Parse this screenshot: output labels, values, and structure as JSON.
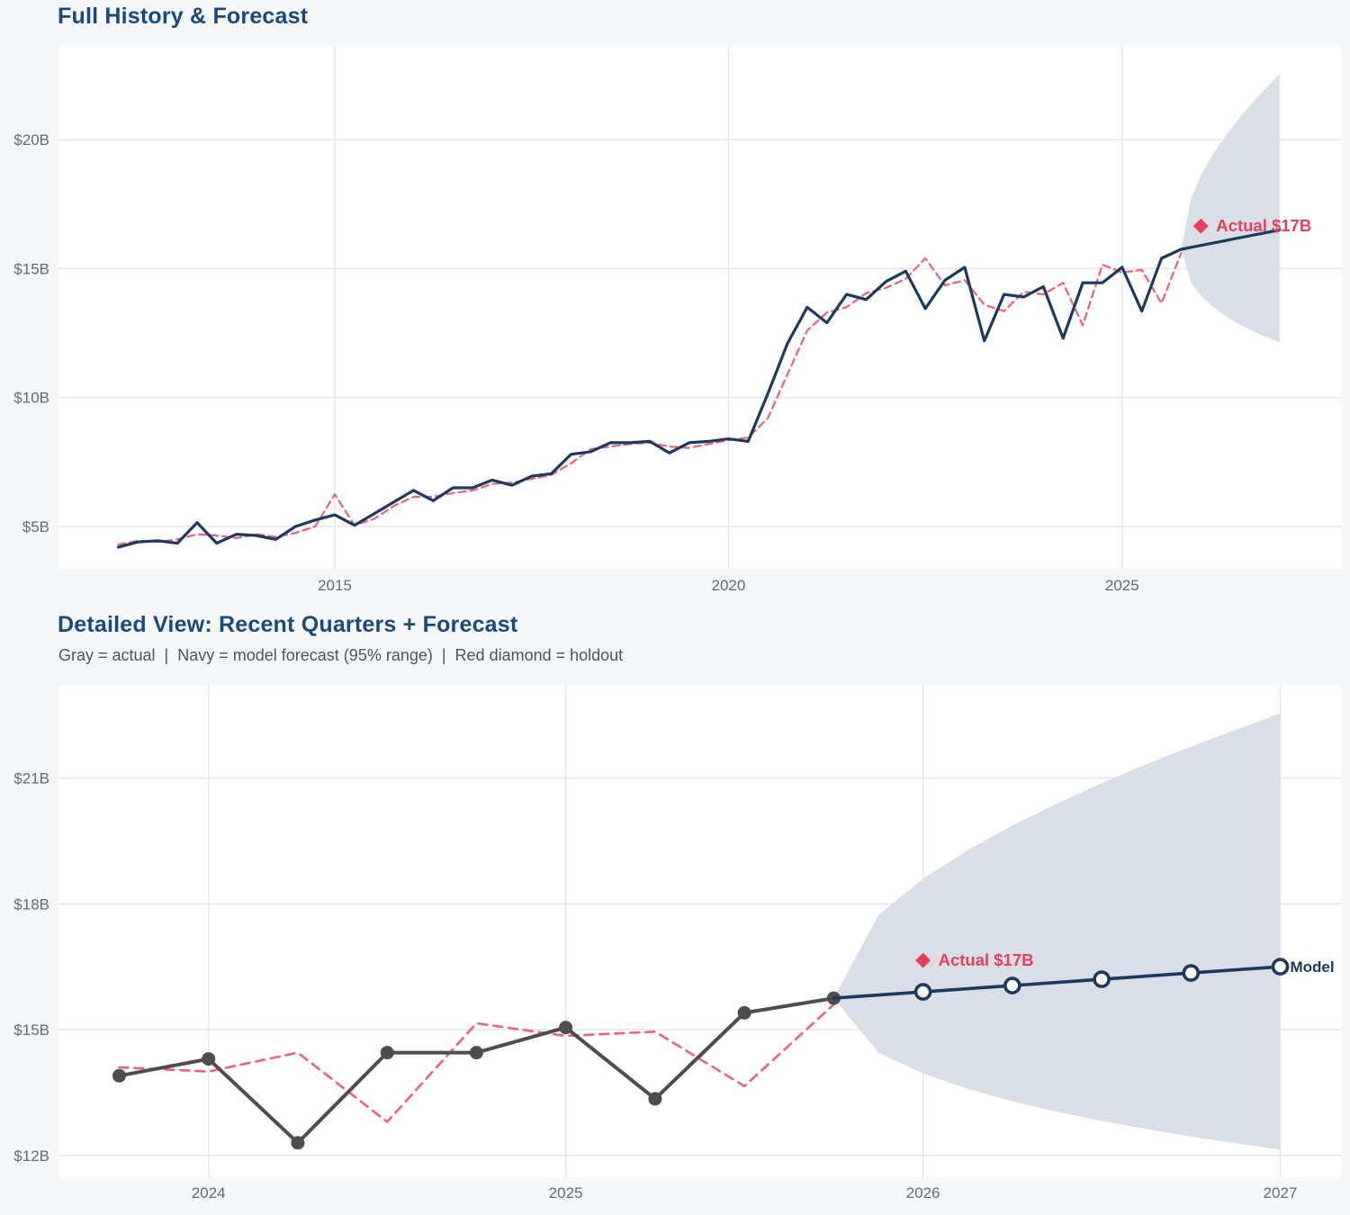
{
  "page": {
    "background": "#f5f7f9"
  },
  "colors": {
    "page_bg": "#f5f7f9",
    "plot_bg": "#ffffff",
    "grid": "#e3e5e8",
    "tick": "#66696e",
    "title": "#1a4a7c",
    "subtitle": "#4b555e",
    "navy": "#1b3a5f",
    "pink": "#ef607c",
    "red": "#e93d5f",
    "gray": "#4d4d4d",
    "fan": "#d9dee7"
  },
  "chart_data": [
    {
      "type": "line",
      "title": "Full History & Forecast",
      "xlabel": "",
      "ylabel": "",
      "grid": true,
      "x_range": [
        2011.49,
        2027.78
      ],
      "y_range": [
        3.36,
        23.6
      ],
      "x_ticks": [
        {
          "v": 2015,
          "label": "2015"
        },
        {
          "v": 2020,
          "label": "2020"
        },
        {
          "v": 2025,
          "label": "2025"
        }
      ],
      "y_ticks": [
        {
          "v": 5,
          "label": "$5B"
        },
        {
          "v": 10,
          "label": "$10B"
        },
        {
          "v": 15,
          "label": "$15B"
        },
        {
          "v": 20,
          "label": "$20B"
        }
      ],
      "band": {
        "name": "forecast-95-range",
        "color": "fan",
        "points": [
          {
            "t": 2025.75,
            "lo": 15.75,
            "hi": 15.75
          },
          {
            "t": 2025.875,
            "lo": 14.45,
            "hi": 17.73
          },
          {
            "t": 2026,
            "lo": 13.95,
            "hi": 18.6
          },
          {
            "t": 2026.125,
            "lo": 13.59,
            "hi": 19.28
          },
          {
            "t": 2026.25,
            "lo": 13.29,
            "hi": 19.87
          },
          {
            "t": 2026.375,
            "lo": 13.04,
            "hi": 20.39
          },
          {
            "t": 2026.5,
            "lo": 12.82,
            "hi": 20.88
          },
          {
            "t": 2026.625,
            "lo": 12.63,
            "hi": 21.33
          },
          {
            "t": 2026.75,
            "lo": 12.45,
            "hi": 21.75
          },
          {
            "t": 2026.875,
            "lo": 12.29,
            "hi": 22.15
          },
          {
            "t": 2027,
            "lo": 12.14,
            "hi": 22.54
          }
        ]
      },
      "series": [
        {
          "name": "model-fit",
          "color": "pink",
          "width": 2.2,
          "dash": "8 5",
          "points": [
            [
              2012.25,
              4.3
            ],
            [
              2012.5,
              4.45
            ],
            [
              2012.75,
              4.4
            ],
            [
              2013,
              4.5
            ],
            [
              2013.25,
              4.7
            ],
            [
              2013.5,
              4.65
            ],
            [
              2013.75,
              4.55
            ],
            [
              2014,
              4.7
            ],
            [
              2014.25,
              4.6
            ],
            [
              2014.5,
              4.75
            ],
            [
              2014.75,
              5.0
            ],
            [
              2015,
              6.25
            ],
            [
              2015.25,
              5.05
            ],
            [
              2015.5,
              5.3
            ],
            [
              2015.75,
              5.8
            ],
            [
              2016,
              6.15
            ],
            [
              2016.25,
              6.15
            ],
            [
              2016.5,
              6.3
            ],
            [
              2016.75,
              6.4
            ],
            [
              2017,
              6.65
            ],
            [
              2017.25,
              6.7
            ],
            [
              2017.5,
              6.85
            ],
            [
              2017.75,
              7.0
            ],
            [
              2018,
              7.45
            ],
            [
              2018.25,
              8.0
            ],
            [
              2018.5,
              8.1
            ],
            [
              2018.75,
              8.2
            ],
            [
              2019,
              8.25
            ],
            [
              2019.25,
              8.1
            ],
            [
              2019.5,
              8.05
            ],
            [
              2019.75,
              8.2
            ],
            [
              2020,
              8.35
            ],
            [
              2020.25,
              8.45
            ],
            [
              2020.5,
              9.2
            ],
            [
              2020.75,
              10.9
            ],
            [
              2021,
              12.6
            ],
            [
              2021.25,
              13.3
            ],
            [
              2021.5,
              13.5
            ],
            [
              2021.75,
              14.05
            ],
            [
              2022,
              14.25
            ],
            [
              2022.25,
              14.6
            ],
            [
              2022.5,
              15.4
            ],
            [
              2022.75,
              14.35
            ],
            [
              2023,
              14.55
            ],
            [
              2023.25,
              13.6
            ],
            [
              2023.5,
              13.35
            ],
            [
              2023.75,
              14.1
            ],
            [
              2024,
              14.0
            ],
            [
              2024.25,
              14.45
            ],
            [
              2024.5,
              12.8
            ],
            [
              2024.75,
              15.15
            ],
            [
              2025,
              14.85
            ],
            [
              2025.25,
              14.95
            ],
            [
              2025.5,
              13.65
            ],
            [
              2025.75,
              15.6
            ]
          ]
        },
        {
          "name": "actual-history",
          "color": "navy",
          "width": 3.2,
          "points": [
            [
              2012.25,
              4.2
            ],
            [
              2012.5,
              4.4
            ],
            [
              2012.75,
              4.45
            ],
            [
              2013,
              4.35
            ],
            [
              2013.25,
              5.15
            ],
            [
              2013.5,
              4.35
            ],
            [
              2013.75,
              4.7
            ],
            [
              2014,
              4.65
            ],
            [
              2014.25,
              4.5
            ],
            [
              2014.5,
              5.0
            ],
            [
              2014.75,
              5.25
            ],
            [
              2015,
              5.45
            ],
            [
              2015.25,
              5.05
            ],
            [
              2015.5,
              5.5
            ],
            [
              2015.75,
              5.95
            ],
            [
              2016,
              6.4
            ],
            [
              2016.25,
              6.0
            ],
            [
              2016.5,
              6.5
            ],
            [
              2016.75,
              6.5
            ],
            [
              2017,
              6.8
            ],
            [
              2017.25,
              6.6
            ],
            [
              2017.5,
              6.95
            ],
            [
              2017.75,
              7.05
            ],
            [
              2018,
              7.8
            ],
            [
              2018.25,
              7.9
            ],
            [
              2018.5,
              8.25
            ],
            [
              2018.75,
              8.25
            ],
            [
              2019,
              8.3
            ],
            [
              2019.25,
              7.85
            ],
            [
              2019.5,
              8.25
            ],
            [
              2019.75,
              8.3
            ],
            [
              2020,
              8.4
            ],
            [
              2020.25,
              8.3
            ],
            [
              2020.5,
              10.15
            ],
            [
              2020.75,
              12.1
            ],
            [
              2021,
              13.5
            ],
            [
              2021.25,
              12.9
            ],
            [
              2021.5,
              14.0
            ],
            [
              2021.75,
              13.8
            ],
            [
              2022,
              14.5
            ],
            [
              2022.25,
              14.9
            ],
            [
              2022.5,
              13.45
            ],
            [
              2022.75,
              14.55
            ],
            [
              2023,
              15.05
            ],
            [
              2023.25,
              12.2
            ],
            [
              2023.5,
              14.0
            ],
            [
              2023.75,
              13.9
            ],
            [
              2024,
              14.3
            ],
            [
              2024.25,
              12.3
            ],
            [
              2024.5,
              14.45
            ],
            [
              2024.75,
              14.45
            ],
            [
              2025,
              15.05
            ],
            [
              2025.25,
              13.35
            ],
            [
              2025.5,
              15.4
            ],
            [
              2025.75,
              15.75
            ]
          ]
        },
        {
          "name": "model-forecast",
          "color": "navy",
          "width": 3.2,
          "points": [
            [
              2025.75,
              15.75
            ],
            [
              2026,
              15.9
            ],
            [
              2026.25,
              16.05
            ],
            [
              2026.5,
              16.2
            ],
            [
              2026.75,
              16.35
            ],
            [
              2027,
              16.5
            ]
          ]
        }
      ],
      "annotations": [
        {
          "shape": "diamond",
          "t": 2026,
          "v": 16.65,
          "label": "Actual $17B",
          "color": "red"
        }
      ]
    },
    {
      "type": "line",
      "title": "Detailed View: Recent Quarters + Forecast",
      "subtitle": "Gray = actual  |  Navy = model forecast (95% range)  |  Red diamond = holdout",
      "xlabel": "",
      "ylabel": "",
      "grid": true,
      "x_range": [
        2023.58,
        2027.17
      ],
      "y_range": [
        11.48,
        23.2
      ],
      "x_ticks": [
        {
          "v": 2024,
          "label": "2024"
        },
        {
          "v": 2025,
          "label": "2025"
        },
        {
          "v": 2026,
          "label": "2026"
        },
        {
          "v": 2027,
          "label": "2027"
        }
      ],
      "y_ticks": [
        {
          "v": 12,
          "label": "$12B"
        },
        {
          "v": 15,
          "label": "$15B"
        },
        {
          "v": 18,
          "label": "$18B"
        },
        {
          "v": 21,
          "label": "$21B"
        }
      ],
      "band": {
        "name": "forecast-95-range",
        "color": "fan",
        "points": [
          {
            "t": 2025.75,
            "lo": 15.75,
            "hi": 15.75
          },
          {
            "t": 2025.875,
            "lo": 14.45,
            "hi": 17.73
          },
          {
            "t": 2026,
            "lo": 13.95,
            "hi": 18.6
          },
          {
            "t": 2026.125,
            "lo": 13.59,
            "hi": 19.28
          },
          {
            "t": 2026.25,
            "lo": 13.29,
            "hi": 19.87
          },
          {
            "t": 2026.375,
            "lo": 13.04,
            "hi": 20.39
          },
          {
            "t": 2026.5,
            "lo": 12.82,
            "hi": 20.88
          },
          {
            "t": 2026.625,
            "lo": 12.63,
            "hi": 21.33
          },
          {
            "t": 2026.75,
            "lo": 12.45,
            "hi": 21.75
          },
          {
            "t": 2026.875,
            "lo": 12.29,
            "hi": 22.15
          },
          {
            "t": 2027,
            "lo": 12.14,
            "hi": 22.54
          }
        ]
      },
      "series": [
        {
          "name": "model-fit",
          "color": "pink",
          "width": 2.6,
          "dash": "10 7",
          "points": [
            [
              2023.75,
              14.1
            ],
            [
              2024,
              14.0
            ],
            [
              2024.25,
              14.45
            ],
            [
              2024.5,
              12.8
            ],
            [
              2024.75,
              15.15
            ],
            [
              2025,
              14.85
            ],
            [
              2025.25,
              14.95
            ],
            [
              2025.5,
              13.65
            ],
            [
              2025.75,
              15.6
            ]
          ]
        },
        {
          "name": "actual-recent",
          "color": "gray",
          "width": 4,
          "markers": "dot",
          "points": [
            [
              2023.75,
              13.9
            ],
            [
              2024,
              14.3
            ],
            [
              2024.25,
              12.3
            ],
            [
              2024.5,
              14.45
            ],
            [
              2024.75,
              14.45
            ],
            [
              2025,
              15.05
            ],
            [
              2025.25,
              13.35
            ],
            [
              2025.5,
              15.4
            ],
            [
              2025.75,
              15.75
            ]
          ]
        },
        {
          "name": "model-forecast",
          "color": "navy",
          "width": 3.6,
          "markers": "open",
          "skip_first_marker": true,
          "end_label": "Model",
          "points": [
            [
              2025.75,
              15.75
            ],
            [
              2026,
              15.9
            ],
            [
              2026.25,
              16.05
            ],
            [
              2026.5,
              16.2
            ],
            [
              2026.75,
              16.35
            ],
            [
              2027,
              16.5
            ]
          ]
        }
      ],
      "annotations": [
        {
          "shape": "diamond",
          "t": 2026,
          "v": 16.65,
          "label": "Actual $17B",
          "color": "red"
        }
      ]
    }
  ]
}
